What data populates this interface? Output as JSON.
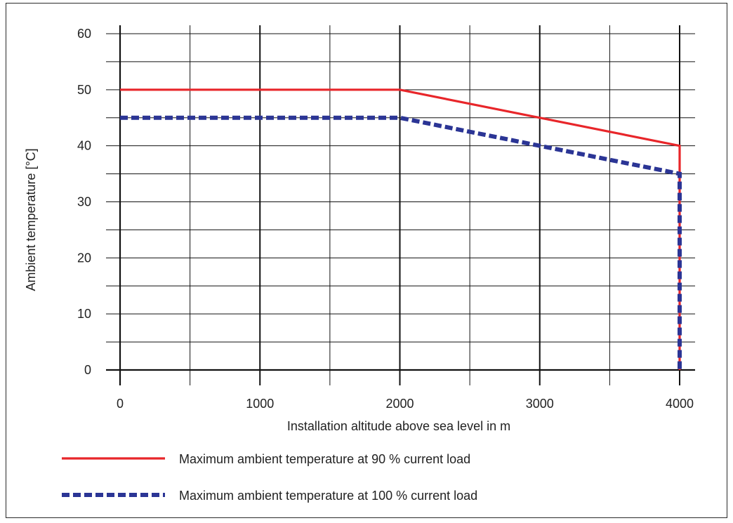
{
  "chart_data": {
    "type": "line",
    "title": "",
    "xlabel": "Installation altitude above sea level in m",
    "ylabel": "Ambient temperature [°C]",
    "xlim": [
      0,
      4000
    ],
    "ylim": [
      0,
      60
    ],
    "x_ticks": [
      0,
      1000,
      2000,
      3000,
      4000
    ],
    "y_ticks": [
      0,
      10,
      20,
      30,
      40,
      50,
      60
    ],
    "x_tick_labels": [
      "0",
      "1000",
      "2000",
      "3000",
      "4000"
    ],
    "y_tick_labels": [
      "0",
      "10",
      "20",
      "30",
      "40",
      "50",
      "60"
    ],
    "grid": true,
    "legend_placement": "bottom",
    "series": [
      {
        "name": "Maximum ambient temperature at 90 % current load",
        "color": "#e8262a",
        "style": "solid",
        "x": [
          0,
          2000,
          4000,
          4000
        ],
        "y": [
          50,
          50,
          40,
          0
        ]
      },
      {
        "name": "Maximum ambient temperature at 100 % current load",
        "color": "#2b3595",
        "style": "dashed",
        "x": [
          0,
          2000,
          4000,
          4000
        ],
        "y": [
          45,
          45,
          35,
          0
        ]
      }
    ]
  }
}
